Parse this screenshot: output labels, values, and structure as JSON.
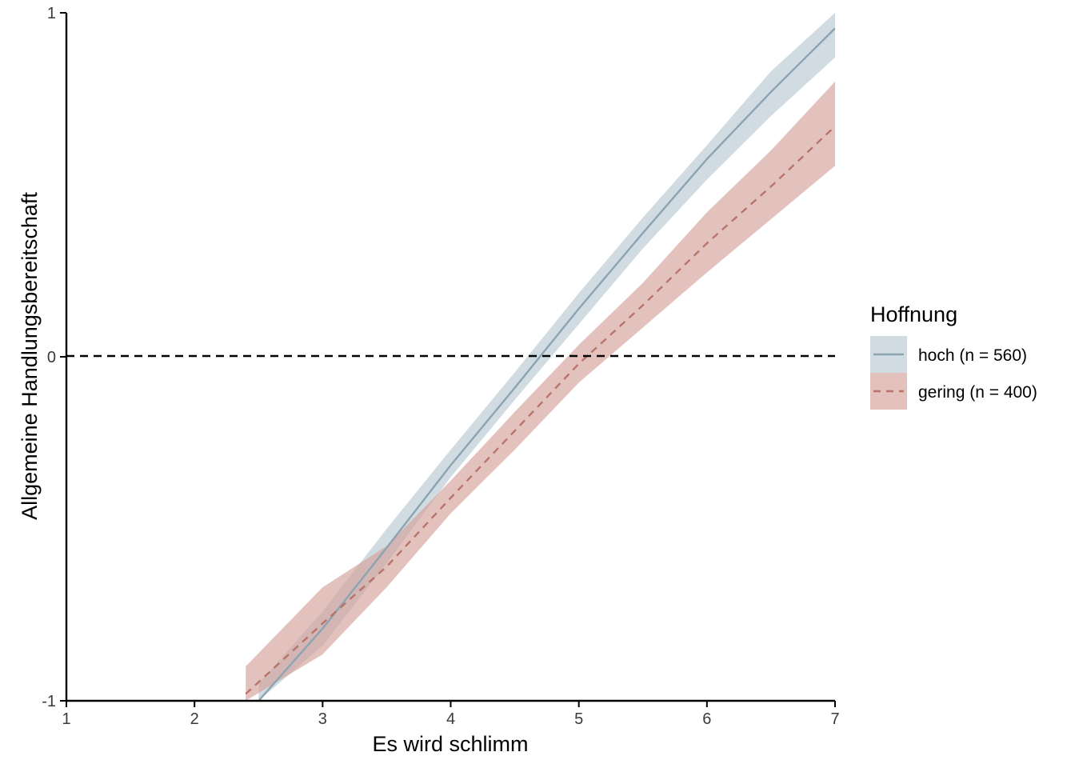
{
  "chart_data": {
    "type": "line",
    "xlabel": "Es wird schlimm",
    "ylabel": "Allgemeine Handlungsbereitschaft",
    "xlim": [
      1,
      7
    ],
    "ylim": [
      -1,
      1
    ],
    "x_ticks": [
      "1",
      "2",
      "3",
      "4",
      "5",
      "6",
      "7"
    ],
    "y_ticks": [
      "-1",
      "0",
      "1"
    ],
    "reference_line": {
      "y": 0,
      "style": "dashed",
      "color": "#000000"
    },
    "grid": false,
    "legend": {
      "title": "Hoffnung",
      "placement": "right"
    },
    "series": [
      {
        "name": "hoch (n = 560)",
        "color": "#8ca4b2",
        "band_color": "#b8c9d3",
        "line_style": "solid",
        "x": [
          2.5,
          3,
          3.5,
          4,
          4.5,
          5,
          5.5,
          6,
          6.5,
          7
        ],
        "y": [
          -1.0,
          -0.79,
          -0.555,
          -0.315,
          -0.09,
          0.14,
          0.36,
          0.575,
          0.77,
          0.955
        ],
        "lower": [
          -1.0,
          -0.84,
          -0.6,
          -0.35,
          -0.125,
          0.095,
          0.315,
          0.515,
          0.7,
          0.87
        ],
        "upper": [
          -0.95,
          -0.74,
          -0.5,
          -0.27,
          -0.045,
          0.185,
          0.405,
          0.615,
          0.83,
          1.0
        ]
      },
      {
        "name": "gering (n = 400)",
        "color": "#b87468",
        "band_color": "#d4a29b",
        "line_style": "dashed",
        "x": [
          2.4,
          3,
          3.5,
          4,
          4.5,
          5,
          5.5,
          6,
          6.5,
          7
        ],
        "y": [
          -0.98,
          -0.775,
          -0.61,
          -0.41,
          -0.215,
          -0.02,
          0.15,
          0.33,
          0.495,
          0.67
        ],
        "lower": [
          -1.0,
          -0.865,
          -0.67,
          -0.455,
          -0.27,
          -0.075,
          0.085,
          0.245,
          0.4,
          0.555
        ],
        "upper": [
          -0.9,
          -0.67,
          -0.55,
          -0.36,
          -0.16,
          0.035,
          0.215,
          0.42,
          0.6,
          0.8
        ]
      }
    ]
  }
}
